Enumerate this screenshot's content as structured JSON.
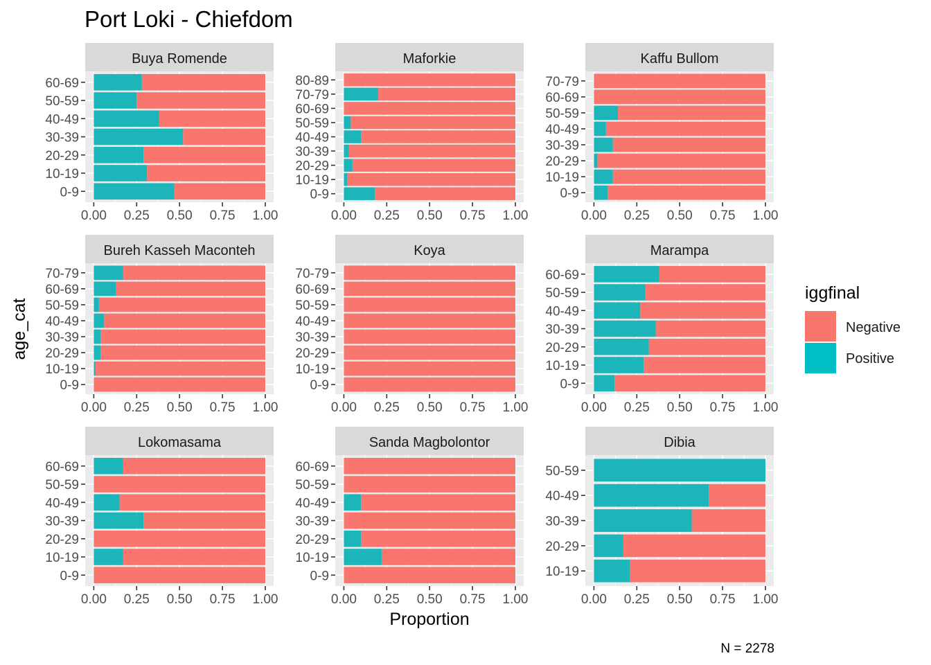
{
  "chart_data": {
    "type": "bar",
    "orientation": "horizontal",
    "stacked": "proportion",
    "title": "Port Loki - Chiefdom",
    "xlabel": "Proportion",
    "ylabel": "age_cat",
    "caption": "N = 2278",
    "xlim": [
      0,
      1
    ],
    "xticks": [
      "0.00",
      "0.25",
      "0.50",
      "0.75",
      "1.00"
    ],
    "grid": true,
    "legend": {
      "title": "iggfinal",
      "placement": "right",
      "entries": [
        {
          "label": "Negative",
          "color": "#F8766D"
        },
        {
          "label": "Positive",
          "color": "#00BFC4"
        }
      ]
    },
    "colors": {
      "Negative": "#F8766D",
      "Positive": "#1CB5BA"
    },
    "facets": [
      {
        "name": "Buya Romende",
        "categories": [
          "0-9",
          "10-19",
          "20-29",
          "30-39",
          "40-49",
          "50-59",
          "60-69"
        ],
        "positive": [
          0.47,
          0.31,
          0.29,
          0.52,
          0.38,
          0.25,
          0.28
        ]
      },
      {
        "name": "Maforkie",
        "categories": [
          "0-9",
          "10-19",
          "20-29",
          "30-39",
          "40-49",
          "50-59",
          "60-69",
          "70-79",
          "80-89"
        ],
        "positive": [
          0.18,
          0.02,
          0.05,
          0.03,
          0.1,
          0.04,
          0.0,
          0.2,
          0.0
        ]
      },
      {
        "name": "Kaffu Bullom",
        "categories": [
          "0-9",
          "10-19",
          "20-29",
          "30-39",
          "40-49",
          "50-59",
          "60-69",
          "70-79"
        ],
        "positive": [
          0.08,
          0.11,
          0.02,
          0.11,
          0.07,
          0.14,
          0.0,
          0.0
        ]
      },
      {
        "name": "Bureh Kasseh Maconteh",
        "categories": [
          "0-9",
          "10-19",
          "20-29",
          "30-39",
          "40-49",
          "50-59",
          "60-69",
          "70-79"
        ],
        "positive": [
          0.0,
          0.01,
          0.04,
          0.04,
          0.06,
          0.03,
          0.13,
          0.17
        ]
      },
      {
        "name": "Koya",
        "categories": [
          "0-9",
          "10-19",
          "20-29",
          "30-39",
          "40-49",
          "50-59",
          "60-69",
          "70-79"
        ],
        "positive": [
          0,
          0,
          0,
          0,
          0,
          0,
          0,
          0
        ]
      },
      {
        "name": "Marampa",
        "categories": [
          "0-9",
          "10-19",
          "20-29",
          "30-39",
          "40-49",
          "50-59",
          "60-69"
        ],
        "positive": [
          0.12,
          0.29,
          0.32,
          0.36,
          0.27,
          0.3,
          0.38
        ]
      },
      {
        "name": "Lokomasama",
        "categories": [
          "0-9",
          "10-19",
          "20-29",
          "30-39",
          "40-49",
          "50-59",
          "60-69"
        ],
        "positive": [
          0.0,
          0.17,
          0.0,
          0.29,
          0.15,
          0.0,
          0.17
        ]
      },
      {
        "name": "Sanda Magbolontor",
        "categories": [
          "0-9",
          "10-19",
          "20-29",
          "30-39",
          "40-49",
          "50-59",
          "60-69"
        ],
        "positive": [
          0.0,
          0.22,
          0.1,
          0.0,
          0.1,
          0.0,
          0.0
        ]
      },
      {
        "name": "Dibia",
        "categories": [
          "10-19",
          "20-29",
          "30-39",
          "40-49",
          "50-59"
        ],
        "positive": [
          0.21,
          0.17,
          0.57,
          0.67,
          1.0
        ]
      }
    ]
  }
}
